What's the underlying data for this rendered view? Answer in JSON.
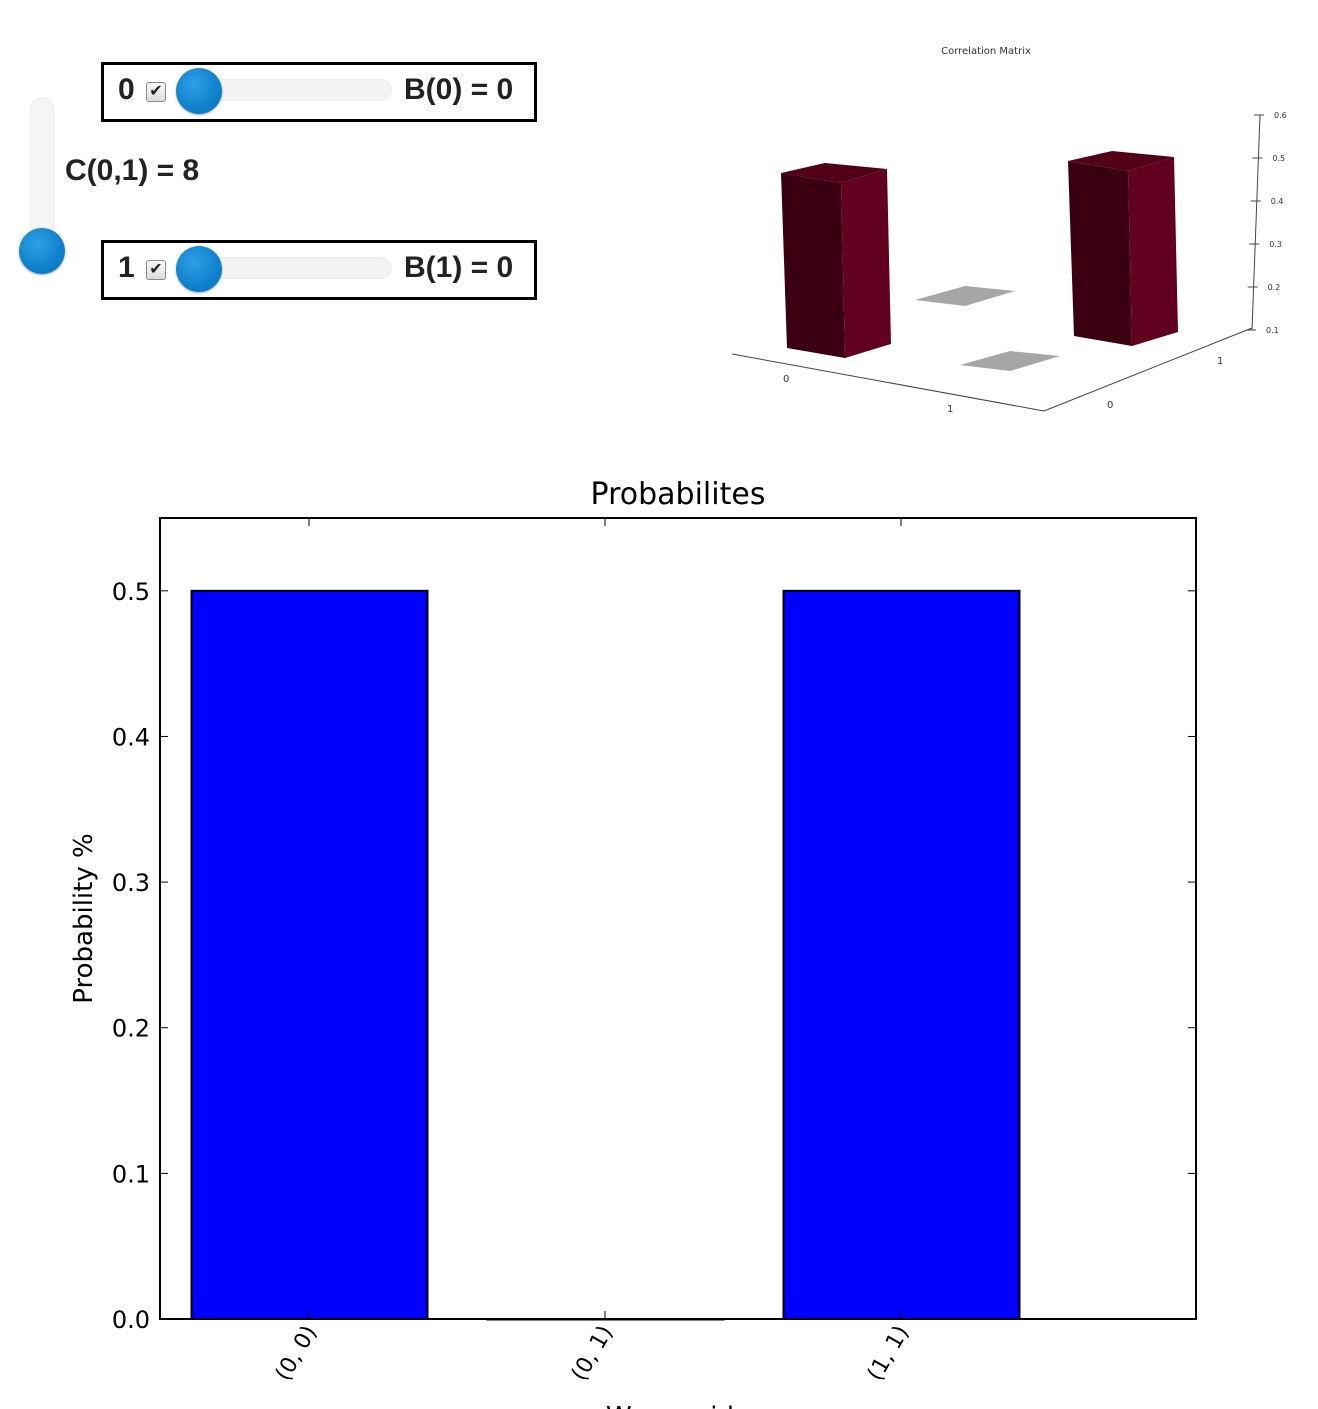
{
  "controls": {
    "mode0": {
      "index": "0",
      "checked": true,
      "label": "B(0) = 0",
      "value": 0
    },
    "mode1": {
      "index": "1",
      "checked": true,
      "label": "B(1) = 0",
      "value": 0
    },
    "coupling": {
      "label": "C(0,1) = 8",
      "value": 8
    },
    "check_glyph": "✔"
  },
  "chart_data": [
    {
      "type": "bar3d",
      "title": "Correlation Matrix",
      "x_categories": [
        "0",
        "1"
      ],
      "y_categories": [
        "0",
        "1"
      ],
      "z_ticks": [
        "0.1",
        "0.2",
        "0.3",
        "0.4",
        "0.5",
        "0.6"
      ],
      "bars": [
        {
          "x": "0",
          "y": "0",
          "value": 0.5
        },
        {
          "x": "0",
          "y": "1",
          "value": 0.0
        },
        {
          "x": "1",
          "y": "0",
          "value": 0.0
        },
        {
          "x": "1",
          "y": "1",
          "value": 0.5
        }
      ],
      "colors": {
        "bar_front": "#3a0012",
        "bar_side": "#620020",
        "bar_top": "#520018",
        "flat": "#a6a6a6",
        "axis": "#444444"
      }
    },
    {
      "type": "bar",
      "title": "Probabilites",
      "xlabel": "Waveguide",
      "ylabel": "Probability %",
      "categories": [
        "(0, 0)",
        "(0, 1)",
        "(1, 1)"
      ],
      "values": [
        0.5,
        0.0,
        0.5
      ],
      "ylim": [
        0.0,
        0.55
      ],
      "yticks": [
        "0.0",
        "0.1",
        "0.2",
        "0.3",
        "0.4",
        "0.5"
      ],
      "colors": {
        "bar": "#0000ff",
        "edge": "#000000"
      }
    }
  ]
}
